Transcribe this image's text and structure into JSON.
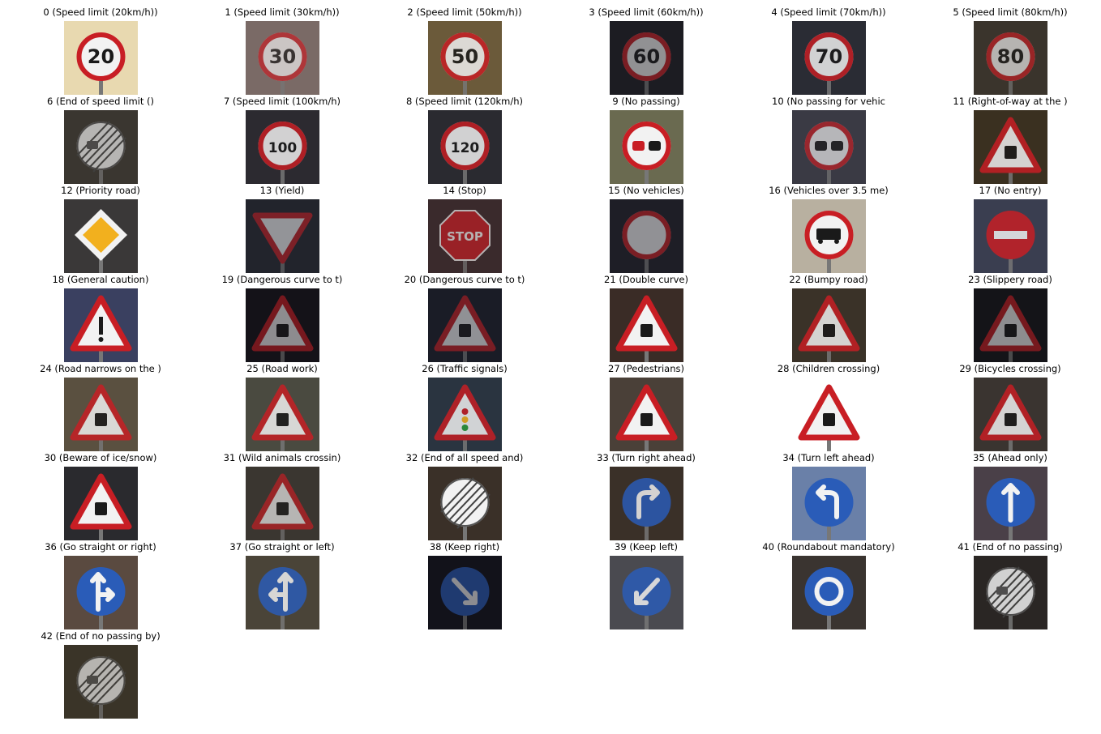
{
  "signs": [
    {
      "label": "0 (Speed limit (20km/h))",
      "icon": "speed-limit-sign-icon",
      "text": "20",
      "bg": "#e8d9b0",
      "scene": "bright"
    },
    {
      "label": "1 (Speed limit (30km/h))",
      "icon": "speed-limit-sign-icon",
      "text": "30",
      "bg": "#7a6a66",
      "scene": "dim"
    },
    {
      "label": "2 (Speed limit (50km/h))",
      "icon": "speed-limit-sign-icon",
      "text": "50",
      "bg": "#6b5a3a",
      "scene": "mid"
    },
    {
      "label": "3 (Speed limit (60km/h))",
      "icon": "speed-limit-sign-icon",
      "text": "60",
      "bg": "#1c1c22",
      "scene": "dark"
    },
    {
      "label": "4 (Speed limit (70km/h))",
      "icon": "speed-limit-sign-icon",
      "text": "70",
      "bg": "#2a2c34",
      "scene": "mid"
    },
    {
      "label": "5 (Speed limit (80km/h))",
      "icon": "speed-limit-sign-icon",
      "text": "80",
      "bg": "#3a342c",
      "scene": "dim"
    },
    {
      "label": "6 (End of speed limit ()",
      "icon": "end-restriction-sign-icon",
      "text": "",
      "bg": "#3a3630",
      "scene": "dim"
    },
    {
      "label": "7 (Speed limit (100km/h)",
      "icon": "speed-limit-sign-icon",
      "text": "100",
      "bg": "#2c2a30",
      "scene": "mid"
    },
    {
      "label": "8 (Speed limit (120km/h)",
      "icon": "speed-limit-sign-icon",
      "text": "120",
      "bg": "#2a2a30",
      "scene": "mid"
    },
    {
      "label": "9 (No passing)",
      "icon": "no-passing-sign-icon",
      "text": "",
      "bg": "#6a6a50",
      "scene": "bright"
    },
    {
      "label": "10 (No passing for vehic",
      "icon": "no-passing-trucks-sign-icon",
      "text": "",
      "bg": "#3a3a44",
      "scene": "dim"
    },
    {
      "label": "11 (Right-of-way at the )",
      "icon": "warning-triangle-sign-icon",
      "text": "",
      "bg": "#3a3020",
      "scene": "mid"
    },
    {
      "label": "12 (Priority road)",
      "icon": "priority-road-sign-icon",
      "text": "",
      "bg": "#3a3838",
      "scene": "bright"
    },
    {
      "label": "13 (Yield)",
      "icon": "yield-sign-icon",
      "text": "",
      "bg": "#22242c",
      "scene": "dark"
    },
    {
      "label": "14 (Stop)",
      "icon": "stop-sign-icon",
      "text": "STOP",
      "bg": "#3a2a2c",
      "scene": "dim"
    },
    {
      "label": "15 (No vehicles)",
      "icon": "no-vehicles-sign-icon",
      "text": "",
      "bg": "#1e1e26",
      "scene": "dark"
    },
    {
      "label": "16 (Vehicles over 3.5 me)",
      "icon": "no-trucks-sign-icon",
      "text": "",
      "bg": "#b8b0a0",
      "scene": "bright"
    },
    {
      "label": "17 (No entry)",
      "icon": "no-entry-sign-icon",
      "text": "",
      "bg": "#3a3e50",
      "scene": "mid"
    },
    {
      "label": "18 (General caution)",
      "icon": "general-caution-sign-icon",
      "text": "",
      "bg": "#3a4060",
      "scene": "bright"
    },
    {
      "label": "19 (Dangerous curve to t)",
      "icon": "warning-triangle-sign-icon",
      "text": "",
      "bg": "#141218",
      "scene": "dark"
    },
    {
      "label": "20 (Dangerous curve to t)",
      "icon": "warning-triangle-sign-icon",
      "text": "",
      "bg": "#1a1c26",
      "scene": "dark"
    },
    {
      "label": "21 (Double curve)",
      "icon": "warning-triangle-sign-icon",
      "text": "",
      "bg": "#3a2c26",
      "scene": "bright"
    },
    {
      "label": "22 (Bumpy road)",
      "icon": "warning-triangle-sign-icon",
      "text": "",
      "bg": "#3a3228",
      "scene": "mid"
    },
    {
      "label": "23 (Slippery road)",
      "icon": "warning-triangle-sign-icon",
      "text": "",
      "bg": "#141418",
      "scene": "dark"
    },
    {
      "label": "24 (Road narrows on the )",
      "icon": "warning-triangle-sign-icon",
      "text": "",
      "bg": "#5a5040",
      "scene": "mid"
    },
    {
      "label": "25 (Road work)",
      "icon": "road-work-sign-icon",
      "text": "",
      "bg": "#4a4a40",
      "scene": "mid"
    },
    {
      "label": "26 (Traffic signals)",
      "icon": "traffic-signals-sign-icon",
      "text": "",
      "bg": "#2a3440",
      "scene": "mid"
    },
    {
      "label": "27 (Pedestrians)",
      "icon": "pedestrians-sign-icon",
      "text": "",
      "bg": "#4a4038",
      "scene": "bright"
    },
    {
      "label": "28 (Children crossing)",
      "icon": "children-crossing-sign-icon",
      "text": "",
      "bg": "#ffffff",
      "scene": "bright"
    },
    {
      "label": "29 (Bicycles crossing)",
      "icon": "warning-triangle-sign-icon",
      "text": "",
      "bg": "#3a3430",
      "scene": "mid"
    },
    {
      "label": "30 (Beware of ice/snow)",
      "icon": "ice-snow-sign-icon",
      "text": "",
      "bg": "#2a2a2e",
      "scene": "bright"
    },
    {
      "label": "31 (Wild animals crossin)",
      "icon": "warning-triangle-sign-icon",
      "text": "",
      "bg": "#3a3630",
      "scene": "dim"
    },
    {
      "label": "32 (End of all speed and)",
      "icon": "end-all-limits-sign-icon",
      "text": "",
      "bg": "#3a3028",
      "scene": "bright"
    },
    {
      "label": "33 (Turn right ahead)",
      "icon": "turn-right-sign-icon",
      "text": "",
      "bg": "#3a3028",
      "scene": "mid"
    },
    {
      "label": "34 (Turn left ahead)",
      "icon": "turn-left-sign-icon",
      "text": "",
      "bg": "#6a80a8",
      "scene": "bright"
    },
    {
      "label": "35 (Ahead only)",
      "icon": "ahead-only-sign-icon",
      "text": "",
      "bg": "#4a4048",
      "scene": "bright"
    },
    {
      "label": "36 (Go straight or right)",
      "icon": "straight-or-right-sign-icon",
      "text": "",
      "bg": "#5a4a40",
      "scene": "bright"
    },
    {
      "label": "37 (Go straight or left)",
      "icon": "straight-or-left-sign-icon",
      "text": "",
      "bg": "#4a4438",
      "scene": "mid"
    },
    {
      "label": "38 (Keep right)",
      "icon": "keep-right-sign-icon",
      "text": "",
      "bg": "#12121a",
      "scene": "dark"
    },
    {
      "label": "39 (Keep left)",
      "icon": "keep-left-sign-icon",
      "text": "",
      "bg": "#4a4a50",
      "scene": "mid"
    },
    {
      "label": "40 (Roundabout mandatory)",
      "icon": "roundabout-sign-icon",
      "text": "",
      "bg": "#3a3430",
      "scene": "bright"
    },
    {
      "label": "41 (End of no passing)",
      "icon": "end-no-passing-sign-icon",
      "text": "",
      "bg": "#2a2624",
      "scene": "mid"
    },
    {
      "label": "42 (End of no passing by)",
      "icon": "end-no-passing-trucks-sign-icon",
      "text": "",
      "bg": "#3a3428",
      "scene": "dim"
    }
  ]
}
